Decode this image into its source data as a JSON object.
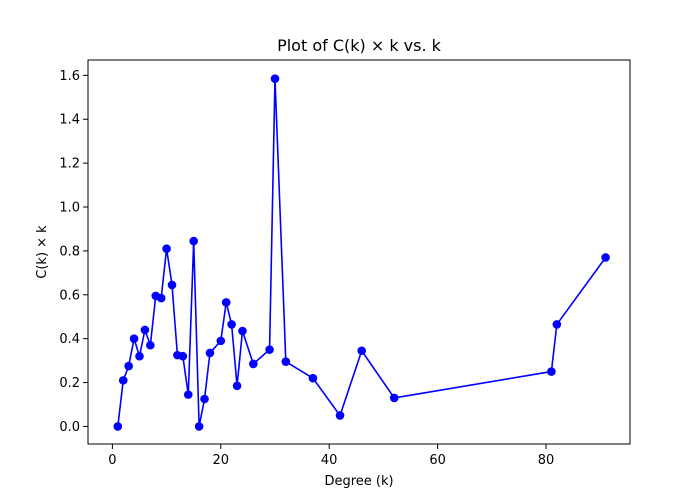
{
  "chart_data": {
    "type": "line",
    "title": "Plot of C(k) × k vs. k",
    "xlabel": "Degree (k)",
    "ylabel": "C(k) × k",
    "xlim": [
      -4.5,
      95.5
    ],
    "ylim": [
      -0.08,
      1.67
    ],
    "xticks": [
      0,
      20,
      40,
      60,
      80
    ],
    "xtick_labels": [
      "0",
      "20",
      "40",
      "60",
      "80"
    ],
    "yticks": [
      0.0,
      0.2,
      0.4,
      0.6,
      0.8,
      1.0,
      1.2,
      1.4,
      1.6
    ],
    "ytick_labels": [
      "0.0",
      "0.2",
      "0.4",
      "0.6",
      "0.8",
      "1.0",
      "1.2",
      "1.4",
      "1.6"
    ],
    "grid": false,
    "legend": false,
    "series": [
      {
        "color": "#0000ff",
        "marker": "circle",
        "x": [
          1,
          2,
          3,
          4,
          5,
          6,
          7,
          8,
          9,
          10,
          11,
          12,
          13,
          14,
          15,
          16,
          17,
          18,
          20,
          21,
          22,
          23,
          24,
          26,
          29,
          30,
          32,
          37,
          42,
          46,
          52,
          81,
          82,
          91
        ],
        "y": [
          0.0,
          0.21,
          0.275,
          0.4,
          0.32,
          0.44,
          0.37,
          0.595,
          0.585,
          0.81,
          0.645,
          0.325,
          0.32,
          0.145,
          0.845,
          0.0,
          0.125,
          0.335,
          0.39,
          0.565,
          0.465,
          0.185,
          0.435,
          0.285,
          0.35,
          1.585,
          0.295,
          0.22,
          0.05,
          0.345,
          0.13,
          0.25,
          0.465,
          0.77
        ]
      }
    ]
  }
}
